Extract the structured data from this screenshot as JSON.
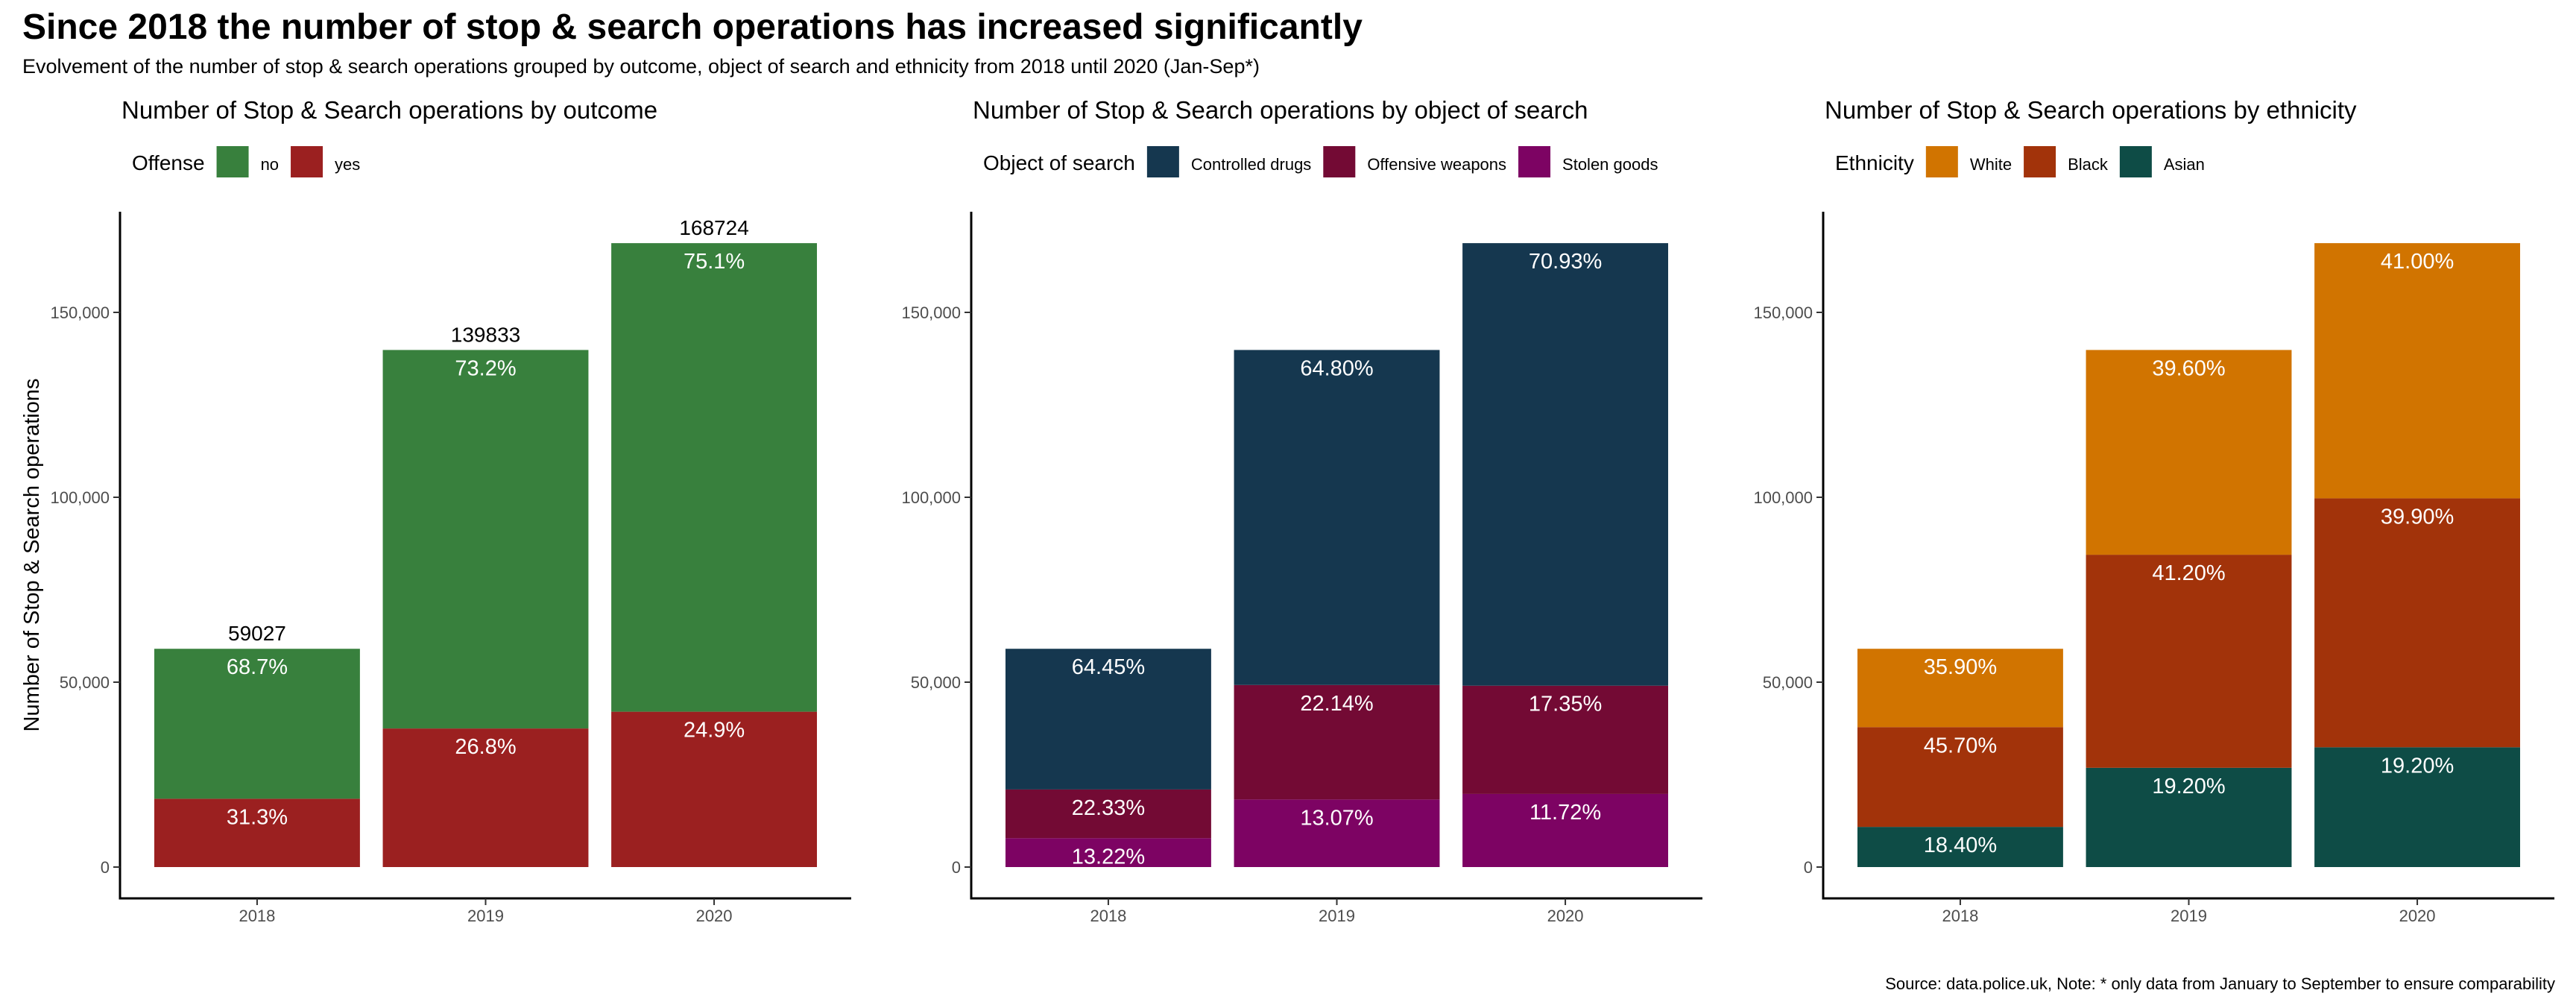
{
  "header": {
    "title": "Since 2018 the number of stop & search operations has increased significantly",
    "subtitle": "Evolvement of the number of stop & search operations grouped by outcome, object of search and ethnicity from 2018 until 2020 (Jan-Sep*)",
    "caption": "Source: data.police.uk, Note: * only data from January to September to ensure comparability"
  },
  "chart_data": [
    {
      "type": "bar",
      "stacked": true,
      "title": "Number of Stop & Search operations by outcome",
      "xlabel": "",
      "ylabel": "Number of Stop & Search operations",
      "categories": [
        "2018",
        "2019",
        "2020"
      ],
      "totals": [
        59027,
        139833,
        168724
      ],
      "show_totals": true,
      "ylim": [
        0,
        175000
      ],
      "yticks": [
        0,
        50000,
        100000,
        150000
      ],
      "ytick_labels": [
        "0",
        "50,000",
        "100,000",
        "150,000"
      ],
      "grid": false,
      "legend": {
        "title": "Offense",
        "position": "top-left"
      },
      "series": [
        {
          "name": "yes",
          "color": "#9b2020",
          "percent": [
            31.3,
            26.8,
            24.9
          ],
          "labels": [
            "31.3%",
            "26.8%",
            "24.9%"
          ]
        },
        {
          "name": "no",
          "color": "#38803d",
          "percent": [
            68.7,
            73.2,
            75.1
          ],
          "labels": [
            "68.7%",
            "73.2%",
            "75.1%"
          ]
        }
      ],
      "legend_order": [
        "no",
        "yes"
      ]
    },
    {
      "type": "bar",
      "stacked": true,
      "title": "Number of Stop & Search operations by object of search",
      "xlabel": "",
      "ylabel": "",
      "categories": [
        "2018",
        "2019",
        "2020"
      ],
      "totals": [
        59027,
        139833,
        168724
      ],
      "show_totals": false,
      "ylim": [
        0,
        175000
      ],
      "yticks": [
        0,
        50000,
        100000,
        150000
      ],
      "ytick_labels": [
        "0",
        "50,000",
        "100,000",
        "150,000"
      ],
      "grid": false,
      "legend": {
        "title": "Object of search",
        "position": "top-left"
      },
      "series": [
        {
          "name": "Stolen goods",
          "color": "#7d0363",
          "percent": [
            13.22,
            13.07,
            11.72
          ],
          "labels": [
            "13.22%",
            "13.07%",
            "11.72%"
          ]
        },
        {
          "name": "Offensive weapons",
          "color": "#730a34",
          "percent": [
            22.33,
            22.14,
            17.35
          ],
          "labels": [
            "22.33%",
            "22.14%",
            "17.35%"
          ]
        },
        {
          "name": "Controlled drugs",
          "color": "#15374f",
          "percent": [
            64.45,
            64.8,
            70.93
          ],
          "labels": [
            "64.45%",
            "64.80%",
            "70.93%"
          ]
        }
      ],
      "legend_order": [
        "Controlled drugs",
        "Offensive weapons",
        "Stolen goods"
      ]
    },
    {
      "type": "bar",
      "stacked": true,
      "title": "Number of Stop & Search operations by ethnicity",
      "xlabel": "",
      "ylabel": "",
      "categories": [
        "2018",
        "2019",
        "2020"
      ],
      "totals": [
        59027,
        139833,
        168724
      ],
      "show_totals": false,
      "ylim": [
        0,
        175000
      ],
      "yticks": [
        0,
        50000,
        100000,
        150000
      ],
      "ytick_labels": [
        "0",
        "50,000",
        "100,000",
        "150,000"
      ],
      "grid": false,
      "legend": {
        "title": "Ethnicity",
        "position": "top-left"
      },
      "series": [
        {
          "name": "Asian",
          "color": "#0e4c46",
          "percent": [
            18.4,
            19.2,
            19.2
          ],
          "labels": [
            "18.40%",
            "19.20%",
            "19.20%"
          ]
        },
        {
          "name": "Black",
          "color": "#a2330a",
          "percent": [
            45.7,
            41.2,
            39.9
          ],
          "labels": [
            "45.70%",
            "41.20%",
            "39.90%"
          ]
        },
        {
          "name": "White",
          "color": "#d17400",
          "percent": [
            35.9,
            39.6,
            41.0
          ],
          "labels": [
            "35.90%",
            "39.60%",
            "41.00%"
          ]
        }
      ],
      "legend_order": [
        "White",
        "Black",
        "Asian"
      ]
    }
  ]
}
